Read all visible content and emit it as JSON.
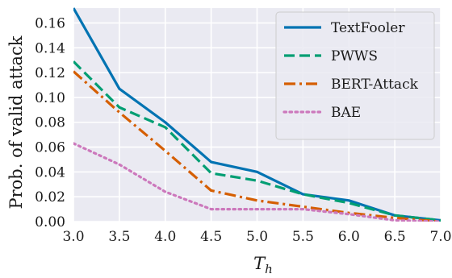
{
  "chart_data": {
    "type": "line",
    "xlabel": "T",
    "xlabel_subscript": "h",
    "ylabel": "Prob. of valid attack",
    "x": [
      3.0,
      3.5,
      4.0,
      4.5,
      5.0,
      5.5,
      6.0,
      6.5,
      7.0
    ],
    "xlim": [
      3.0,
      7.0
    ],
    "ylim": [
      0.0,
      0.172
    ],
    "xticks": [
      3.0,
      3.5,
      4.0,
      4.5,
      5.0,
      5.5,
      6.0,
      6.5,
      7.0
    ],
    "xtick_labels": [
      "3.0",
      "3.5",
      "4.0",
      "4.5",
      "5.0",
      "5.5",
      "6.0",
      "6.5",
      "7.0"
    ],
    "yticks": [
      0.0,
      0.02,
      0.04,
      0.06,
      0.08,
      0.1,
      0.12,
      0.14,
      0.16
    ],
    "ytick_labels": [
      "0.00",
      "0.02",
      "0.04",
      "0.06",
      "0.08",
      "0.10",
      "0.12",
      "0.14",
      "0.16"
    ],
    "grid": true,
    "background": "#eaeaf2",
    "legend_position": "top-right",
    "series": [
      {
        "name": "TextFooler",
        "color": "#0173b2",
        "dash": "solid",
        "values": [
          0.172,
          0.107,
          0.08,
          0.048,
          0.04,
          0.022,
          0.017,
          0.005,
          0.001
        ]
      },
      {
        "name": "PWWS",
        "color": "#029e73",
        "dash": "dashed",
        "values": [
          0.129,
          0.092,
          0.076,
          0.039,
          0.033,
          0.022,
          0.015,
          0.005,
          0.001
        ]
      },
      {
        "name": "BERT-Attack",
        "color": "#d55e00",
        "dash": "dashdot",
        "values": [
          0.121,
          0.088,
          0.057,
          0.025,
          0.017,
          0.012,
          0.007,
          0.003,
          0.0
        ]
      },
      {
        "name": "BAE",
        "color": "#cc78bc",
        "dash": "dotted",
        "values": [
          0.063,
          0.046,
          0.024,
          0.01,
          0.01,
          0.01,
          0.006,
          0.001,
          0.0
        ]
      }
    ]
  }
}
